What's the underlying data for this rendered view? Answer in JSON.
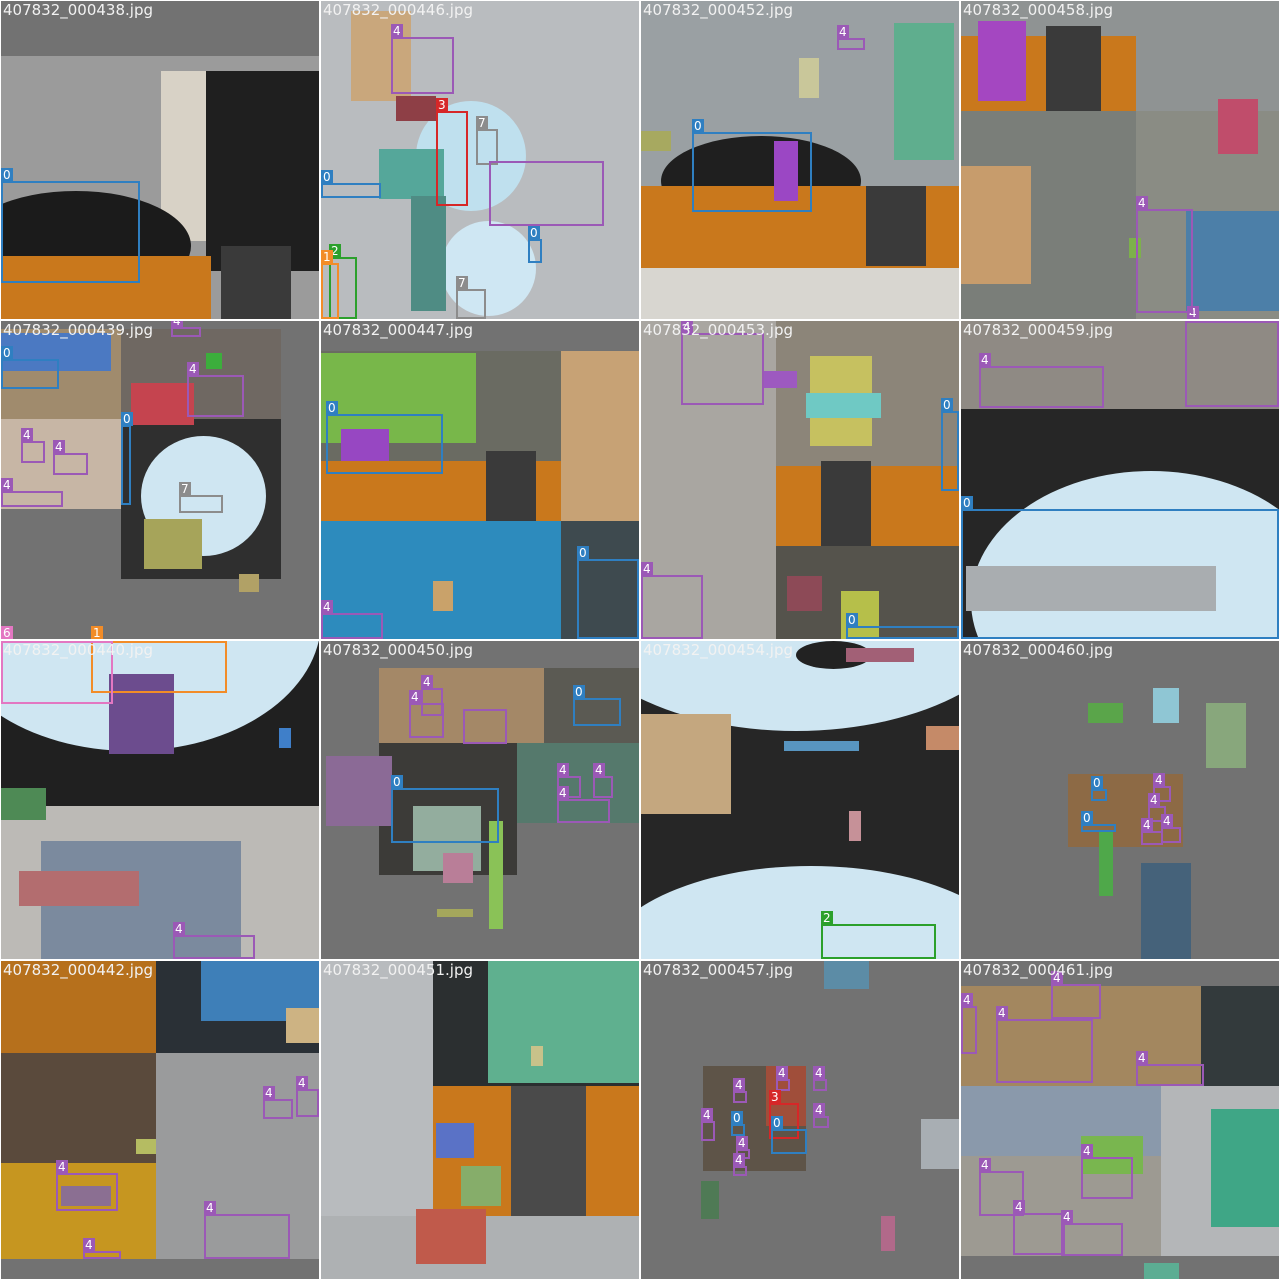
{
  "palette": {
    "class_0": "#2f7fc1",
    "class_1": "#f28c28",
    "class_2": "#2ca02c",
    "class_3": "#d62728",
    "class_4": "#9b59b6",
    "class_6": "#e377c2",
    "class_7": "#8c8c8c",
    "padding_gray": "#727272"
  },
  "tiles": [
    {
      "caption": "407832_000438.jpg",
      "boxes": [
        {
          "label": "0"
        }
      ]
    },
    {
      "caption": "407832_000446.jpg",
      "boxes": [
        {
          "label": "4"
        },
        {
          "label": "3"
        },
        {
          "label": "7"
        },
        {
          "label": "0"
        },
        {
          "label": "0"
        },
        {
          "label": "2"
        },
        {
          "label": "1"
        },
        {
          "label": "7"
        }
      ]
    },
    {
      "caption": "407832_000452.jpg",
      "boxes": [
        {
          "label": "4"
        },
        {
          "label": "0"
        }
      ]
    },
    {
      "caption": "407832_000458.jpg",
      "boxes": [
        {
          "label": "4"
        },
        {
          "label": "4"
        }
      ]
    },
    {
      "caption": "407832_000439.jpg",
      "boxes": [
        {
          "label": "4"
        },
        {
          "label": "0"
        },
        {
          "label": "4"
        },
        {
          "label": "0"
        },
        {
          "label": "4"
        },
        {
          "label": "4"
        },
        {
          "label": "4"
        },
        {
          "label": "7"
        },
        {
          "label": "6"
        },
        {
          "label": "1"
        }
      ]
    },
    {
      "caption": "407832_000447.jpg",
      "boxes": [
        {
          "label": "0"
        },
        {
          "label": "0"
        },
        {
          "label": "4"
        }
      ]
    },
    {
      "caption": "407832_000453.jpg",
      "boxes": [
        {
          "label": "4"
        },
        {
          "label": "0"
        },
        {
          "label": "4"
        },
        {
          "label": "0"
        }
      ]
    },
    {
      "caption": "407832_000459.jpg",
      "boxes": [
        {
          "label": "4"
        },
        {
          "label": "0"
        }
      ]
    },
    {
      "caption": "407832_000440.jpg",
      "boxes": [
        {
          "label": "4"
        }
      ]
    },
    {
      "caption": "407832_000450.jpg",
      "boxes": [
        {
          "label": "4"
        },
        {
          "label": "4"
        },
        {
          "label": "0"
        },
        {
          "label": "0"
        },
        {
          "label": "4"
        },
        {
          "label": "4"
        },
        {
          "label": "4"
        }
      ]
    },
    {
      "caption": "407832_000454.jpg",
      "boxes": [
        {
          "label": "2"
        }
      ]
    },
    {
      "caption": "407832_000460.jpg",
      "boxes": [
        {
          "label": "0"
        },
        {
          "label": "4"
        },
        {
          "label": "4"
        },
        {
          "label": "0"
        },
        {
          "label": "4"
        },
        {
          "label": "4"
        }
      ]
    },
    {
      "caption": "407832_000442.jpg",
      "boxes": [
        {
          "label": "4"
        },
        {
          "label": "4"
        },
        {
          "label": "4"
        },
        {
          "label": "4"
        },
        {
          "label": "4"
        }
      ]
    },
    {
      "caption": "407832_000451.jpg",
      "boxes": []
    },
    {
      "caption": "407832_000457.jpg",
      "boxes": [
        {
          "label": "4"
        },
        {
          "label": "4"
        },
        {
          "label": "4"
        },
        {
          "label": "4"
        },
        {
          "label": "3"
        },
        {
          "label": "0"
        },
        {
          "label": "0"
        },
        {
          "label": "4"
        },
        {
          "label": "4"
        },
        {
          "label": "4"
        }
      ]
    },
    {
      "caption": "407832_000461.jpg",
      "boxes": [
        {
          "label": "4"
        },
        {
          "label": "4"
        },
        {
          "label": "4"
        },
        {
          "label": "4"
        },
        {
          "label": "4"
        },
        {
          "label": "4"
        },
        {
          "label": "4"
        },
        {
          "label": "4"
        }
      ]
    }
  ]
}
